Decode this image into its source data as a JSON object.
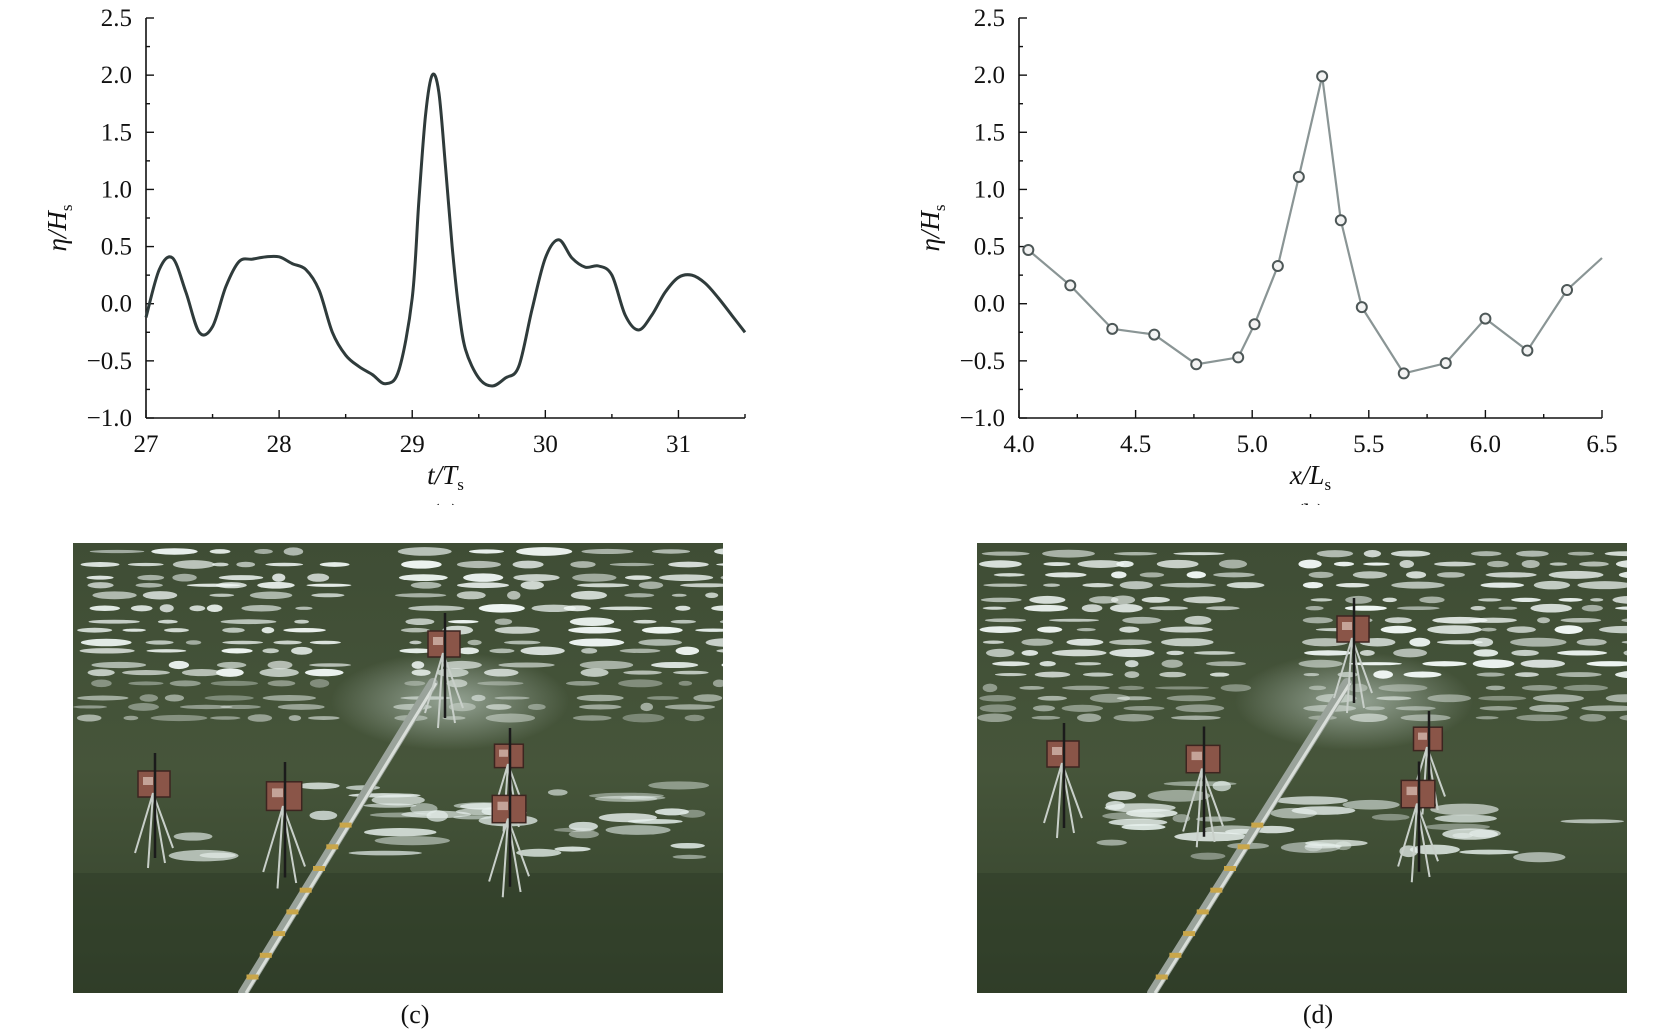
{
  "panels": {
    "a": {
      "caption": "(a)",
      "chart_data": {
        "type": "line",
        "xlabel": "t/T",
        "xlabel_sub": "s",
        "ylabel": "η/H",
        "ylabel_sub": "s",
        "xlim": [
          27,
          31.5
        ],
        "ylim": [
          -1.0,
          2.5
        ],
        "x_ticks": [
          27,
          28,
          29,
          30,
          31
        ],
        "x_tick_labels": [
          "27",
          "28",
          "29",
          "30",
          "31"
        ],
        "y_ticks": [
          -1.0,
          -0.5,
          0.0,
          0.5,
          1.0,
          1.5,
          2.0,
          2.5
        ],
        "y_tick_labels": [
          "−1.0",
          "−0.5",
          "0.0",
          "0.5",
          "1.0",
          "1.5",
          "2.0",
          "2.5"
        ],
        "grid": false,
        "color": "#2f3b3b",
        "series": [
          {
            "x": [
              27.0,
              27.1,
              27.2,
              27.3,
              27.4,
              27.5,
              27.6,
              27.7,
              27.8,
              27.9,
              28.0,
              28.1,
              28.2,
              28.3,
              28.4,
              28.5,
              28.6,
              28.7,
              28.8,
              28.9,
              29.0,
              29.05,
              29.1,
              29.15,
              29.2,
              29.25,
              29.3,
              29.35,
              29.4,
              29.5,
              29.6,
              29.7,
              29.8,
              29.9,
              30.0,
              30.1,
              30.2,
              30.3,
              30.4,
              30.5,
              30.6,
              30.7,
              30.8,
              30.9,
              31.0,
              31.1,
              31.2,
              31.3,
              31.4,
              31.5
            ],
            "y": [
              -0.12,
              0.3,
              0.4,
              0.1,
              -0.25,
              -0.2,
              0.15,
              0.37,
              0.39,
              0.41,
              0.41,
              0.35,
              0.3,
              0.12,
              -0.25,
              -0.45,
              -0.55,
              -0.62,
              -0.7,
              -0.58,
              0.05,
              0.9,
              1.65,
              2.0,
              1.85,
              1.2,
              0.5,
              -0.05,
              -0.4,
              -0.65,
              -0.72,
              -0.65,
              -0.55,
              -0.05,
              0.4,
              0.56,
              0.4,
              0.32,
              0.33,
              0.25,
              -0.1,
              -0.23,
              -0.1,
              0.1,
              0.23,
              0.25,
              0.18,
              0.05,
              -0.1,
              -0.25
            ]
          }
        ]
      }
    },
    "b": {
      "caption": "(b)",
      "chart_data": {
        "type": "line",
        "xlabel": "x/L",
        "xlabel_sub": "s",
        "ylabel": "η/H",
        "ylabel_sub": "s",
        "xlim": [
          4.0,
          6.5
        ],
        "ylim": [
          -1.0,
          2.5
        ],
        "x_ticks": [
          4.0,
          4.5,
          5.0,
          5.5,
          6.0,
          6.5
        ],
        "x_tick_labels": [
          "4.0",
          "4.5",
          "5.0",
          "5.5",
          "6.0",
          "6.5"
        ],
        "y_ticks": [
          -1.0,
          -0.5,
          0.0,
          0.5,
          1.0,
          1.5,
          2.0,
          2.5
        ],
        "y_tick_labels": [
          "−1.0",
          "−0.5",
          "0.0",
          "0.5",
          "1.0",
          "1.5",
          "2.0",
          "2.5"
        ],
        "grid": false,
        "color": "#8a9595",
        "series": [
          {
            "x": [
              4.04,
              4.22,
              4.4,
              4.58,
              4.76,
              4.94,
              5.01,
              5.11,
              5.2,
              5.3,
              5.38,
              5.47,
              5.65,
              5.83,
              6.0,
              6.18,
              6.35,
              6.5
            ],
            "y": [
              0.47,
              0.16,
              -0.22,
              -0.27,
              -0.53,
              -0.47,
              -0.18,
              0.33,
              1.11,
              1.99,
              0.73,
              -0.03,
              -0.61,
              -0.52,
              -0.13,
              -0.41,
              0.12,
              0.4
            ],
            "markers": [
              true,
              true,
              true,
              true,
              true,
              true,
              true,
              true,
              true,
              true,
              true,
              true,
              true,
              true,
              true,
              true,
              true,
              false
            ]
          }
        ]
      }
    },
    "c": {
      "caption": "(c)"
    },
    "d": {
      "caption": "(d)"
    }
  }
}
